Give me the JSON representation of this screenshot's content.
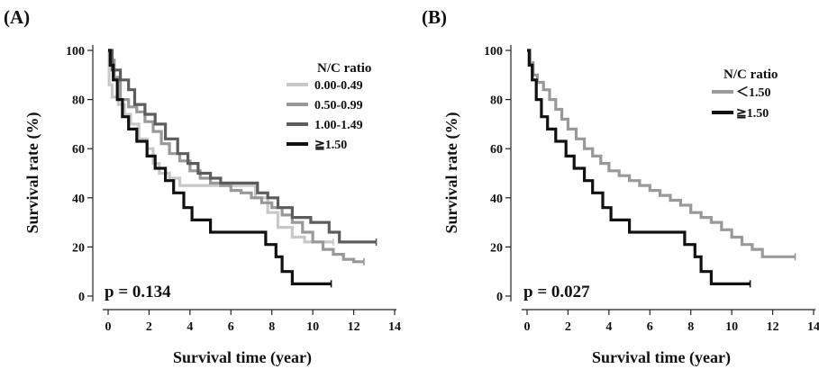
{
  "chart_data": [
    {
      "panel_label": "(A)",
      "type": "line",
      "xlabel": "Survival time (year)",
      "ylabel": "Survival rate (%)",
      "xlim": [
        0,
        14
      ],
      "ylim": [
        0,
        100
      ],
      "xticks": [
        "0",
        "2",
        "4",
        "6",
        "8",
        "10",
        "12",
        "14"
      ],
      "yticks": [
        "0",
        "20",
        "40",
        "60",
        "80",
        "100"
      ],
      "legend_title": "N/C ratio",
      "legend_position": "top-right",
      "p_value_text": "p = 0.134",
      "series": [
        {
          "name": "0.00-0.49",
          "color": "#c8c8c8",
          "x": [
            0,
            0.05,
            0.2,
            0.5,
            0.8,
            1.1,
            1.5,
            1.9,
            2.2,
            2.5,
            3.0,
            3.5,
            5.0,
            7.2,
            7.8,
            8.3,
            9.0,
            9.6,
            11.0
          ],
          "y": [
            100,
            86,
            81,
            78,
            74,
            70,
            64,
            60,
            54,
            50,
            48,
            45,
            45,
            40,
            34,
            28,
            24,
            22,
            22
          ]
        },
        {
          "name": "0.50-0.99",
          "color": "#999999",
          "x": [
            0,
            0.1,
            0.3,
            0.6,
            1.0,
            1.4,
            1.8,
            2.2,
            2.6,
            3.0,
            3.5,
            4.0,
            4.5,
            5.0,
            5.5,
            6.0,
            6.5,
            7.0,
            7.5,
            8.0,
            8.5,
            9.0,
            9.5,
            10.0,
            10.5,
            11.0,
            11.5,
            12.0,
            12.5
          ],
          "y": [
            100,
            96,
            89,
            80,
            77,
            75,
            71,
            67,
            62,
            58,
            55,
            51,
            48,
            46,
            45,
            43,
            42,
            40,
            38,
            36,
            33,
            30,
            26,
            22,
            19,
            17,
            15,
            14,
            14
          ]
        },
        {
          "name": "1.00-1.49",
          "color": "#5c5c5c",
          "x": [
            0,
            0.2,
            0.6,
            1.0,
            1.3,
            1.8,
            2.3,
            2.8,
            3.4,
            3.9,
            4.4,
            5.0,
            5.5,
            6.3,
            7.3,
            7.8,
            8.3,
            9.0,
            9.9,
            10.8,
            11.3,
            12.0,
            13.1
          ],
          "y": [
            100,
            92,
            88,
            84,
            78,
            74,
            70,
            64,
            58,
            54,
            50,
            48,
            46,
            46,
            42,
            40,
            36,
            32,
            30,
            26,
            22,
            22,
            22
          ]
        },
        {
          "name": "≧1.50",
          "color": "#111111",
          "x": [
            0,
            0.1,
            0.25,
            0.45,
            0.7,
            1.0,
            1.4,
            1.9,
            2.3,
            2.8,
            3.2,
            3.7,
            4.1,
            5.0,
            6.2,
            7.2,
            7.7,
            8.2,
            8.5,
            9.0,
            10.9
          ],
          "y": [
            100,
            94,
            88,
            80,
            73,
            68,
            63,
            57,
            52,
            47,
            42,
            36,
            31,
            26,
            26,
            26,
            21,
            16,
            10,
            5,
            5
          ]
        }
      ]
    },
    {
      "panel_label": "(B)",
      "type": "line",
      "xlabel": "Survival time (year)",
      "ylabel": "Survival rate (%)",
      "xlim": [
        0,
        14
      ],
      "ylim": [
        0,
        100
      ],
      "xticks": [
        "0",
        "2",
        "4",
        "6",
        "8",
        "10",
        "12",
        "14"
      ],
      "yticks": [
        "0",
        "20",
        "40",
        "60",
        "80",
        "100"
      ],
      "legend_title": "N/C ratio",
      "legend_position": "top-right",
      "p_value_text": "p = 0.027",
      "series": [
        {
          "name": "＜1.50",
          "color": "#999999",
          "x": [
            0,
            0.15,
            0.3,
            0.5,
            0.8,
            1.1,
            1.4,
            1.7,
            2.0,
            2.4,
            2.8,
            3.2,
            3.6,
            4.0,
            4.5,
            5.0,
            5.5,
            6.0,
            6.5,
            7.0,
            7.5,
            8.0,
            8.5,
            9.0,
            9.5,
            10.0,
            10.5,
            11.0,
            11.5,
            12.0,
            13.1
          ],
          "y": [
            100,
            95,
            90,
            87,
            84,
            80,
            76,
            72,
            68,
            64,
            60,
            57,
            54,
            51,
            49,
            47,
            45,
            43,
            41,
            39,
            37,
            34,
            32,
            30,
            27,
            24,
            21,
            19,
            16,
            16,
            16
          ]
        },
        {
          "name": "≧1.50",
          "color": "#111111",
          "x": [
            0,
            0.1,
            0.25,
            0.45,
            0.7,
            1.0,
            1.4,
            1.9,
            2.3,
            2.8,
            3.2,
            3.7,
            4.1,
            5.0,
            6.2,
            7.2,
            7.7,
            8.2,
            8.5,
            9.0,
            10.9
          ],
          "y": [
            100,
            94,
            88,
            80,
            73,
            68,
            63,
            57,
            52,
            47,
            42,
            36,
            31,
            26,
            26,
            26,
            21,
            16,
            10,
            5,
            5
          ]
        }
      ]
    }
  ]
}
